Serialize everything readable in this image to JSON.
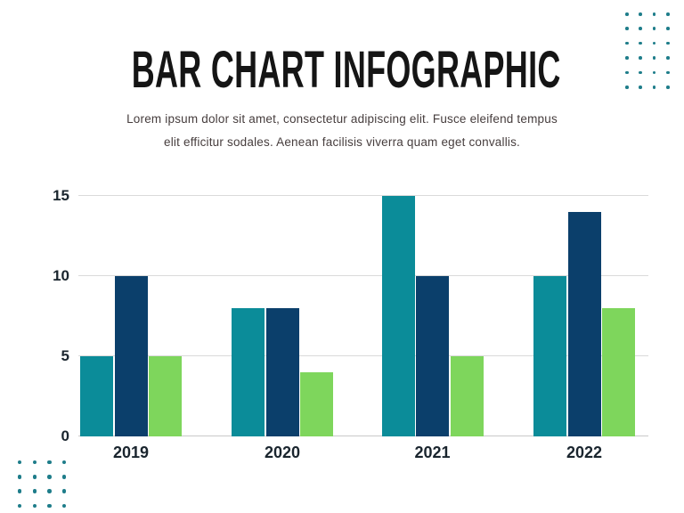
{
  "page": {
    "title": "BAR CHART INFOGRAPHIC",
    "subtitle_lines": [
      "Lorem ipsum dolor sit amet, consectetur adipiscing elit. Fusce eleifend tempus",
      "elit efficitur sodales. Aenean facilisis viverra quam eget convallis."
    ]
  },
  "chart_data": {
    "type": "bar",
    "title": "BAR CHART INFOGRAPHIC",
    "categories": [
      "2019",
      "2020",
      "2021",
      "2022"
    ],
    "series": [
      {
        "name": "series-1",
        "color": "#0B8C99",
        "values": [
          5,
          8,
          15,
          10
        ]
      },
      {
        "name": "series-2",
        "color": "#0B3F6B",
        "values": [
          10,
          8,
          10,
          14
        ]
      },
      {
        "name": "series-3",
        "color": "#7ED65C",
        "values": [
          5,
          4,
          5,
          8
        ]
      }
    ],
    "yticks": [
      0,
      5,
      10,
      15
    ],
    "ylim": [
      0,
      15
    ],
    "xlabel": "",
    "ylabel": "",
    "grid": "horizontal",
    "legend": "none"
  },
  "decor": {
    "top_right_dot_grid": {
      "cols": 4,
      "rows": 6
    },
    "bottom_left_dot_grid": {
      "cols": 4,
      "rows": 4
    }
  },
  "colors": {
    "background": "#ffffff",
    "title": "#151515",
    "subtitle": "#463d3d",
    "axis_label": "#1a252e",
    "gridline": "#dadada",
    "baseline": "#c9c9c9",
    "dot": "#1e7d8a"
  }
}
